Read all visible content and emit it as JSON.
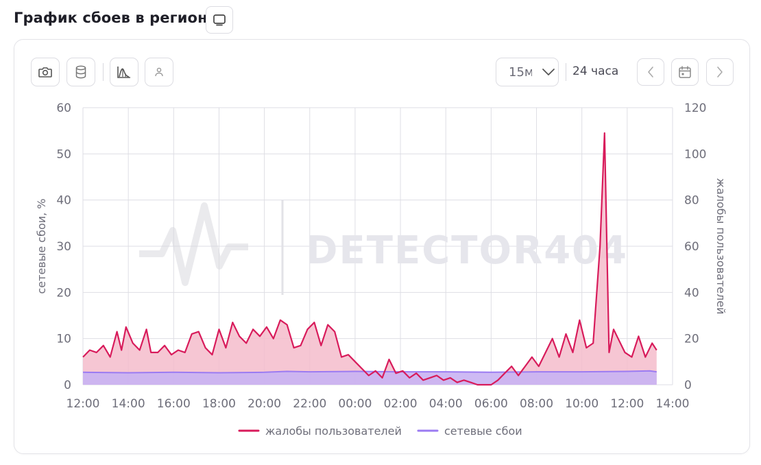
{
  "header": {
    "title": "График сбоев в регионе",
    "view_icon": "screen-icon"
  },
  "toolbar": {
    "buttons": [
      {
        "name": "camera",
        "icon": "camera-icon"
      },
      {
        "name": "database",
        "icon": "database-icon"
      },
      {
        "name": "chart-type",
        "icon": "chart-curve-icon"
      },
      {
        "name": "person",
        "icon": "person-icon"
      }
    ],
    "interval_select": {
      "value": "15м",
      "icon": "chevron-down-icon"
    },
    "range_label": "24 часа",
    "prev_icon": "chevron-left-icon",
    "calendar_icon": "calendar-icon",
    "next_icon": "chevron-right-icon"
  },
  "chart_data": {
    "type": "area",
    "watermark": "DETECTOR404",
    "x_ticks": [
      "12:00",
      "14:00",
      "16:00",
      "18:00",
      "20:00",
      "22:00",
      "00:00",
      "02:00",
      "04:00",
      "06:00",
      "08:00",
      "10:00",
      "12:00",
      "14:00"
    ],
    "x_range_hours": [
      0,
      26
    ],
    "y_left": {
      "label": "сетевые сбои, %",
      "ticks": [
        "0",
        "10",
        "20",
        "30",
        "40",
        "50",
        "60"
      ],
      "range": [
        0,
        60
      ]
    },
    "y_right": {
      "label": "жалобы пользователей",
      "ticks": [
        "0",
        "20",
        "40",
        "60",
        "80",
        "100",
        "120"
      ],
      "range": [
        0,
        120
      ]
    },
    "grid": true,
    "legend_position": "bottom",
    "series": [
      {
        "name": "жалобы пользователей",
        "axis": "right",
        "color": "#d81b5b",
        "fill": "#f5bccb",
        "hours": [
          0,
          0.3,
          0.6,
          0.9,
          1.2,
          1.5,
          1.7,
          1.9,
          2.2,
          2.5,
          2.8,
          3.0,
          3.3,
          3.6,
          3.9,
          4.2,
          4.5,
          4.8,
          5.1,
          5.4,
          5.7,
          6.0,
          6.3,
          6.6,
          6.9,
          7.2,
          7.5,
          7.8,
          8.1,
          8.4,
          8.7,
          9.0,
          9.3,
          9.6,
          9.9,
          10.2,
          10.5,
          10.8,
          11.1,
          11.4,
          11.7,
          12.0,
          12.3,
          12.6,
          12.9,
          13.2,
          13.5,
          13.8,
          14.1,
          14.4,
          14.7,
          15.0,
          15.3,
          15.6,
          15.9,
          16.2,
          16.5,
          16.8,
          17.1,
          17.4,
          17.7,
          18.0,
          18.3,
          18.6,
          18.9,
          19.2,
          19.5,
          19.8,
          20.1,
          20.4,
          20.7,
          21.0,
          21.3,
          21.6,
          21.9,
          22.2,
          22.5,
          22.8,
          23.0,
          23.2,
          23.4,
          23.6,
          23.9,
          24.2,
          24.5,
          24.8,
          25.1,
          25.3
        ],
        "values": [
          12,
          15,
          14,
          17,
          12,
          23,
          15,
          25,
          18,
          15,
          24,
          14,
          14,
          17,
          13,
          15,
          14,
          22,
          23,
          16,
          13,
          24,
          16,
          27,
          21,
          18,
          24,
          21,
          25,
          20,
          28,
          26,
          16,
          17,
          24,
          27,
          17,
          26,
          23,
          12,
          13,
          10,
          7,
          4,
          6,
          3,
          11,
          5,
          6,
          3,
          5,
          2,
          3,
          4,
          2,
          3,
          1,
          2,
          1,
          0,
          0,
          0,
          2,
          5,
          8,
          4,
          8,
          12,
          8,
          14,
          20,
          12,
          22,
          14,
          28,
          16,
          18,
          60,
          109,
          14,
          24,
          20,
          14,
          12,
          21,
          12,
          18,
          15
        ],
        "peak": 109
      },
      {
        "name": "сетевые сбои",
        "axis": "left",
        "color": "#9b7bf2",
        "fill": "#c9b3f3",
        "hours": [
          0,
          2,
          4,
          6,
          8,
          9,
          10,
          12,
          14,
          16,
          18,
          20,
          22,
          24,
          25,
          25.3
        ],
        "values": [
          2.7,
          2.6,
          2.7,
          2.6,
          2.7,
          2.9,
          2.8,
          2.9,
          2.8,
          2.8,
          2.7,
          2.8,
          2.8,
          2.9,
          3.0,
          2.8
        ]
      }
    ]
  }
}
